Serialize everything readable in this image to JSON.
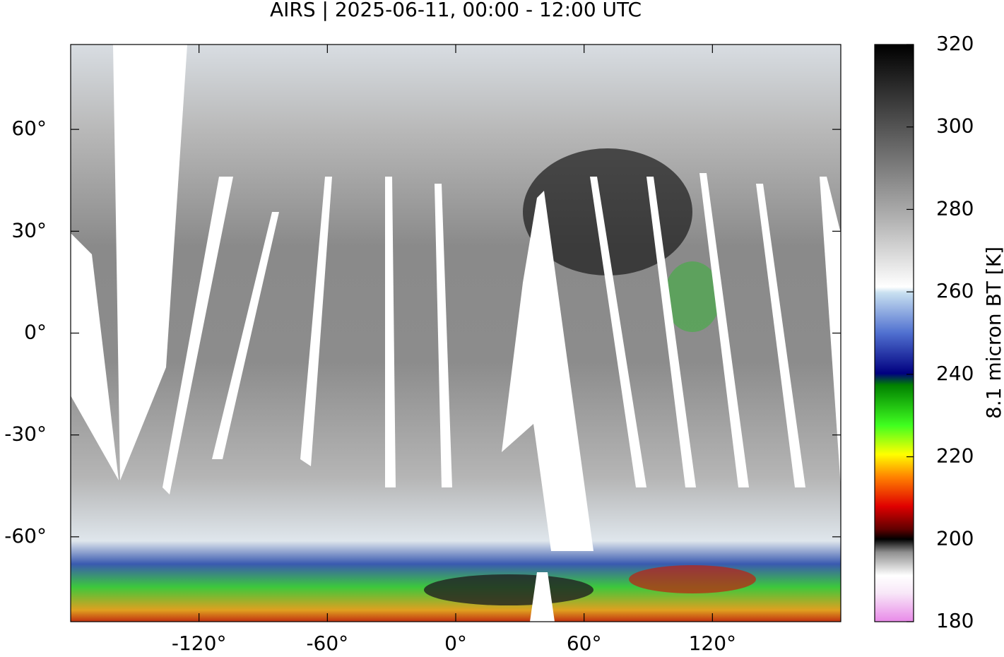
{
  "title": "AIRS | 2025-06-11, 00:00 - 12:00 UTC",
  "map": {
    "xlim": [
      -180,
      180
    ],
    "ylim": [
      -85,
      85
    ],
    "xticks": [
      {
        "value": -120,
        "label": "-120°"
      },
      {
        "value": -60,
        "label": "-60°"
      },
      {
        "value": 0,
        "label": "0°"
      },
      {
        "value": 60,
        "label": "60°"
      },
      {
        "value": 120,
        "label": "120°"
      }
    ],
    "yticks": [
      {
        "value": 60,
        "label": "60°"
      },
      {
        "value": 30,
        "label": "30°"
      },
      {
        "value": 0,
        "label": "0°"
      },
      {
        "value": -30,
        "label": "-30°"
      },
      {
        "value": -60,
        "label": "-60°"
      }
    ]
  },
  "colorbar": {
    "label": "8.1 micron BT [K]",
    "lim": [
      180,
      320
    ],
    "ticks": [
      180,
      200,
      220,
      240,
      260,
      280,
      300,
      320
    ]
  }
}
